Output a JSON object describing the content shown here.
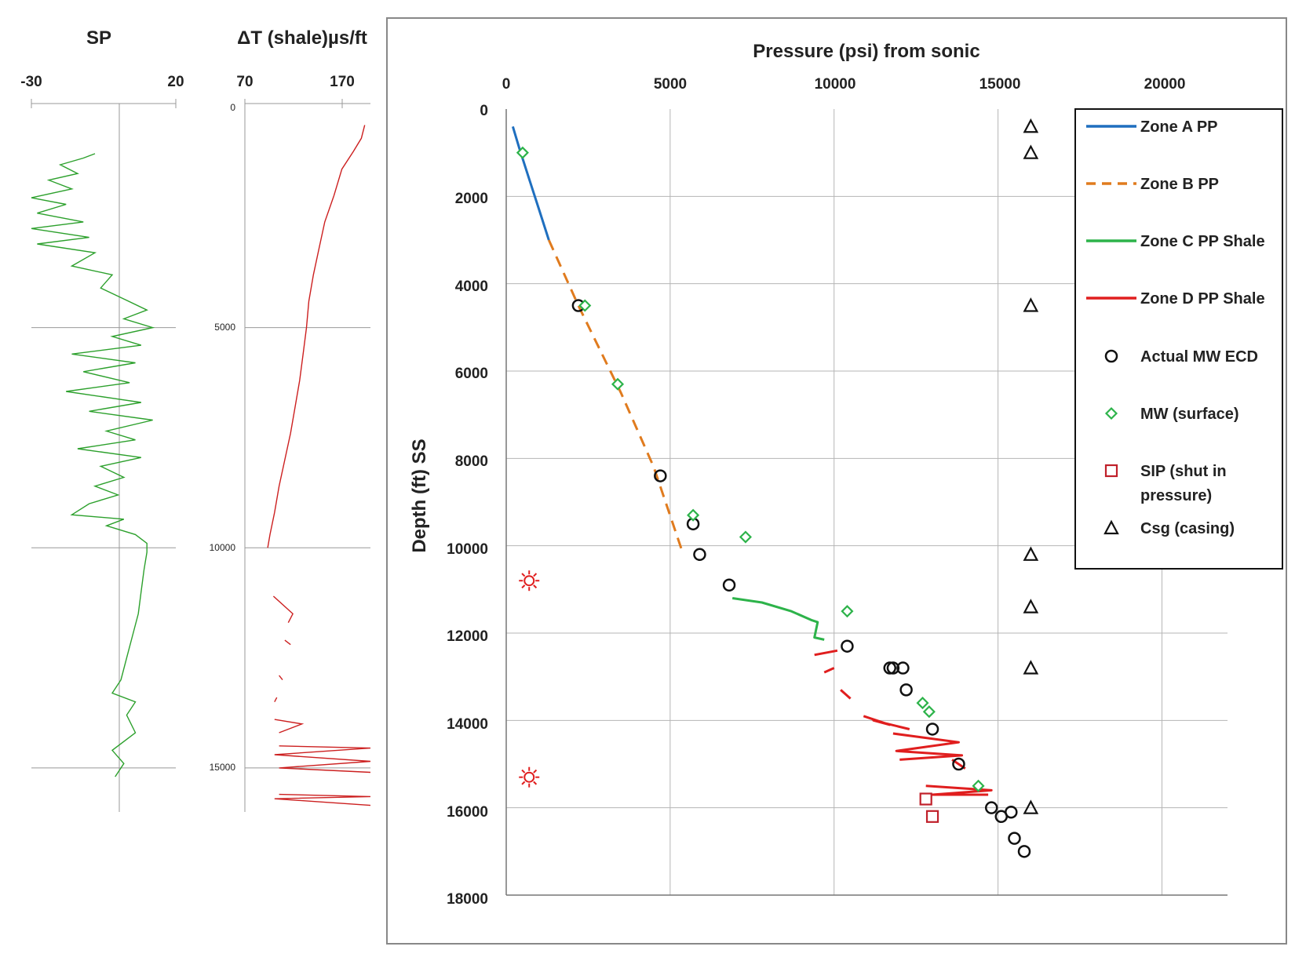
{
  "chart_data": [
    {
      "type": "line",
      "title": "SP",
      "xlim": [
        -30,
        20
      ],
      "x_ticks": [
        "-30",
        "20"
      ],
      "ylim": [
        0,
        16000
      ],
      "y_gridlines": [
        5000,
        10000,
        15000
      ],
      "series": [
        {
          "color": "#2ca02c",
          "points": [
            [
              -8,
              1050
            ],
            [
              -12,
              1150
            ],
            [
              -20,
              1300
            ],
            [
              -14,
              1500
            ],
            [
              -24,
              1650
            ],
            [
              -16,
              1850
            ],
            [
              -30,
              2050
            ],
            [
              -18,
              2200
            ],
            [
              -28,
              2400
            ],
            [
              -12,
              2600
            ],
            [
              -30,
              2750
            ],
            [
              -10,
              2950
            ],
            [
              -28,
              3100
            ],
            [
              -8,
              3300
            ],
            [
              -16,
              3600
            ],
            [
              -2,
              3800
            ],
            [
              -6,
              4100
            ],
            [
              2,
              4350
            ],
            [
              10,
              4600
            ],
            [
              2,
              4800
            ],
            [
              12,
              5000
            ],
            [
              -2,
              5200
            ],
            [
              8,
              5400
            ],
            [
              -16,
              5600
            ],
            [
              6,
              5800
            ],
            [
              -12,
              6000
            ],
            [
              4,
              6250
            ],
            [
              -18,
              6450
            ],
            [
              8,
              6700
            ],
            [
              -10,
              6900
            ],
            [
              12,
              7100
            ],
            [
              -4,
              7350
            ],
            [
              6,
              7550
            ],
            [
              -14,
              7750
            ],
            [
              8,
              7950
            ],
            [
              -6,
              8150
            ],
            [
              2,
              8400
            ],
            [
              -8,
              8600
            ],
            [
              0,
              8800
            ],
            [
              -10,
              9000
            ],
            [
              -16,
              9250
            ],
            [
              2,
              9350
            ],
            [
              -4,
              9500
            ],
            [
              6,
              9700
            ],
            [
              10,
              9900
            ],
            [
              10,
              10100
            ],
            [
              9,
              10500
            ],
            [
              8,
              11000
            ],
            [
              7,
              11500
            ],
            [
              5,
              12000
            ],
            [
              3,
              12500
            ],
            [
              1,
              13000
            ],
            [
              -2,
              13300
            ],
            [
              6,
              13500
            ],
            [
              3,
              13800
            ],
            [
              6,
              14200
            ],
            [
              -2,
              14600
            ],
            [
              2,
              14900
            ],
            [
              -1,
              15200
            ]
          ]
        }
      ]
    },
    {
      "type": "line",
      "title": "ΔT (shale)µs/ft",
      "xlim": [
        70,
        180
      ],
      "x_ticks": [
        "70",
        "170"
      ],
      "ylim": [
        0,
        16000
      ],
      "y_ticks": [
        "0",
        "5000",
        "10000",
        "15000"
      ],
      "series": [
        {
          "color": "#cc1f1f",
          "segments": [
            [
              [
                175,
                400
              ],
              [
                172,
                700
              ],
              [
                165,
                1000
              ],
              [
                155,
                1400
              ],
              [
                148,
                2000
              ],
              [
                140,
                2600
              ],
              [
                135,
                3200
              ],
              [
                130,
                3800
              ],
              [
                126,
                4400
              ],
              [
                124,
                5000
              ],
              [
                121,
                5600
              ],
              [
                118,
                6200
              ],
              [
                114,
                6800
              ],
              [
                110,
                7400
              ],
              [
                105,
                8000
              ],
              [
                100,
                8600
              ],
              [
                96,
                9200
              ],
              [
                92,
                9700
              ],
              [
                90,
                10000
              ]
            ],
            [
              [
                95,
                11100
              ],
              [
                112,
                11500
              ],
              [
                108,
                11700
              ]
            ],
            [
              [
                105,
                12100
              ],
              [
                110,
                12200
              ]
            ],
            [
              [
                100,
                12900
              ],
              [
                103,
                13000
              ]
            ],
            [
              [
                98,
                13400
              ],
              [
                96,
                13500
              ]
            ],
            [
              [
                96,
                13900
              ],
              [
                120,
                14000
              ],
              [
                100,
                14200
              ]
            ],
            [
              [
                100,
                14500
              ],
              [
                180,
                14550
              ],
              [
                96,
                14700
              ],
              [
                180,
                14850
              ],
              [
                100,
                15000
              ],
              [
                180,
                15100
              ]
            ],
            [
              [
                100,
                15600
              ],
              [
                180,
                15650
              ],
              [
                96,
                15700
              ],
              [
                180,
                15850
              ]
            ]
          ]
        }
      ]
    },
    {
      "type": "scatter",
      "title": "Pressure (psi) from sonic",
      "xlabel": "Pressure (psi) from sonic",
      "ylabel": "Depth (ft) SS",
      "xlim": [
        0,
        22000
      ],
      "ylim": [
        18000,
        0
      ],
      "x_ticks": [
        "0",
        "5000",
        "10000",
        "15000",
        "20000"
      ],
      "y_ticks": [
        "0",
        "2000",
        "4000",
        "6000",
        "8000",
        "10000",
        "12000",
        "14000",
        "16000",
        "18000"
      ],
      "grid": true,
      "legend_position": "top-right",
      "series": [
        {
          "name": "Zone A PP",
          "style": "line",
          "color": "#1f6fbf",
          "points": [
            [
              200,
              400
            ],
            [
              400,
              900
            ],
            [
              700,
              1600
            ],
            [
              1000,
              2300
            ],
            [
              1300,
              3000
            ]
          ]
        },
        {
          "name": "Zone B PP",
          "style": "dashed-line",
          "color": "#e07b1e",
          "points": [
            [
              1300,
              3000
            ],
            [
              2200,
              4500
            ],
            [
              3500,
              6500
            ],
            [
              4500,
              8200
            ],
            [
              5400,
              10200
            ]
          ]
        },
        {
          "name": "Zone C PP Shale",
          "style": "line",
          "color": "#2db34a",
          "points": [
            [
              6900,
              11200
            ],
            [
              7800,
              11300
            ],
            [
              8700,
              11500
            ],
            [
              9300,
              11700
            ],
            [
              9500,
              11750
            ],
            [
              9400,
              12100
            ],
            [
              9700,
              12150
            ]
          ]
        },
        {
          "name": "Zone D PP Shale",
          "style": "line",
          "color": "#e01e1e",
          "segments": [
            [
              [
                9400,
                12500
              ],
              [
                10100,
                12400
              ]
            ],
            [
              [
                9700,
                12900
              ],
              [
                10000,
                12800
              ]
            ],
            [
              [
                10200,
                13300
              ],
              [
                10500,
                13500
              ]
            ],
            [
              [
                10900,
                13900
              ],
              [
                11700,
                14100
              ],
              [
                11200,
                14000
              ],
              [
                12300,
                14200
              ]
            ],
            [
              [
                11800,
                14300
              ],
              [
                13800,
                14500
              ],
              [
                11900,
                14700
              ],
              [
                13900,
                14800
              ],
              [
                12000,
                14900
              ]
            ],
            [
              [
                13600,
                14900
              ],
              [
                14000,
                15100
              ]
            ],
            [
              [
                12800,
                15500
              ],
              [
                14800,
                15600
              ],
              [
                13000,
                15700
              ],
              [
                14700,
                15700
              ]
            ]
          ]
        },
        {
          "name": "Actual MW ECD",
          "marker": "circle",
          "color": "#111111",
          "points": [
            [
              2200,
              4500
            ],
            [
              4700,
              8400
            ],
            [
              5700,
              9500
            ],
            [
              5900,
              10200
            ],
            [
              6800,
              10900
            ],
            [
              10400,
              12300
            ],
            [
              11700,
              12800
            ],
            [
              11800,
              12800
            ],
            [
              12100,
              12800
            ],
            [
              12200,
              13300
            ],
            [
              13000,
              14200
            ],
            [
              13800,
              15000
            ],
            [
              14800,
              16000
            ],
            [
              15100,
              16200
            ],
            [
              15400,
              16100
            ],
            [
              15500,
              16700
            ],
            [
              15800,
              17000
            ]
          ]
        },
        {
          "name": "MW (surface)",
          "marker": "diamond",
          "color": "#2db34a",
          "points": [
            [
              500,
              1000
            ],
            [
              2400,
              4500
            ],
            [
              3400,
              6300
            ],
            [
              5700,
              9300
            ],
            [
              7300,
              9800
            ],
            [
              10400,
              11500
            ],
            [
              12700,
              13600
            ],
            [
              12900,
              13800
            ],
            [
              14400,
              15500
            ]
          ]
        },
        {
          "name": "SIP (shut in pressure)",
          "marker": "square",
          "color": "#c0202a",
          "points": [
            [
              12800,
              15800
            ],
            [
              13000,
              16200
            ]
          ]
        },
        {
          "name": "Csg (casing)",
          "marker": "triangle",
          "color": "#111111",
          "points": [
            [
              16000,
              400
            ],
            [
              16000,
              1000
            ],
            [
              16000,
              4500
            ],
            [
              16000,
              10200
            ],
            [
              16000,
              11400
            ],
            [
              16000,
              12800
            ],
            [
              16000,
              16000
            ]
          ]
        },
        {
          "marker": "sun",
          "color": "#e01e1e",
          "points": [
            [
              700,
              10800
            ],
            [
              700,
              15300
            ]
          ]
        }
      ]
    }
  ]
}
